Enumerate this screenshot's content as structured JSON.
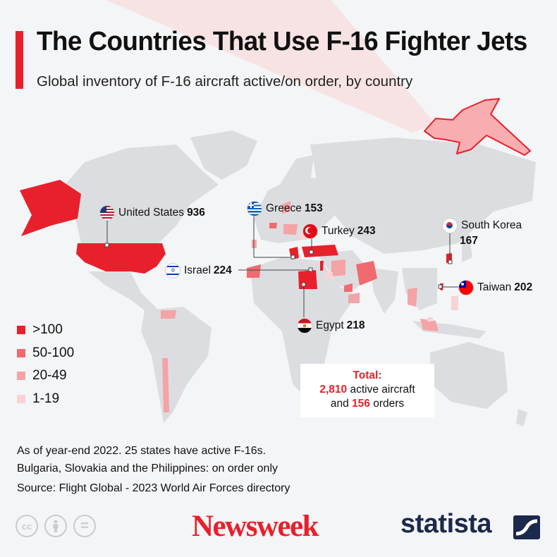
{
  "header": {
    "title": "The Countries That Use F-16 Fighter Jets",
    "subtitle": "Global inventory of F-16 aircraft active/on order, by country"
  },
  "colors": {
    "accent": "#e8202b",
    "tier_over_100": "#e8202b",
    "tier_50_100": "#ef6b6f",
    "tier_20_49": "#f4a3a6",
    "tier_1_19": "#f8d3d5",
    "land": "#dcdde0"
  },
  "countries": [
    {
      "name": "United States",
      "value": "936",
      "tier": ">100",
      "flag": "us"
    },
    {
      "name": "Greece",
      "value": "153",
      "tier": ">100",
      "flag": "gr"
    },
    {
      "name": "Turkey",
      "value": "243",
      "tier": ">100",
      "flag": "tr"
    },
    {
      "name": "South Korea",
      "value": "167",
      "tier": ">100",
      "flag": "kr"
    },
    {
      "name": "Israel",
      "value": "224",
      "tier": ">100",
      "flag": "il"
    },
    {
      "name": "Taiwan",
      "value": "202",
      "tier": ">100",
      "flag": "tw"
    },
    {
      "name": "Egypt",
      "value": "218",
      "tier": ">100",
      "flag": "eg"
    }
  ],
  "legend": {
    "items": [
      ">100",
      "50-100",
      "20-49",
      "1-19"
    ]
  },
  "total": {
    "heading": "Total:",
    "active_value": "2,810",
    "active_text": "active aircraft",
    "and_text": "and",
    "orders_value": "156",
    "orders_text": "orders"
  },
  "notes": {
    "line1": "As of year-end 2022. 25 states have active F-16s.",
    "line2": "Bulgaria, Slovakia and the Philippines: on order only",
    "source": "Source: Flight Global - 2023 World Air Forces directory"
  },
  "footer": {
    "icons": [
      "cc-icon",
      "attribution-icon",
      "no-derivatives-icon"
    ],
    "cc_text": "cc",
    "nd_text": "=",
    "newsweek": "Newsweek",
    "statista": "statista"
  }
}
